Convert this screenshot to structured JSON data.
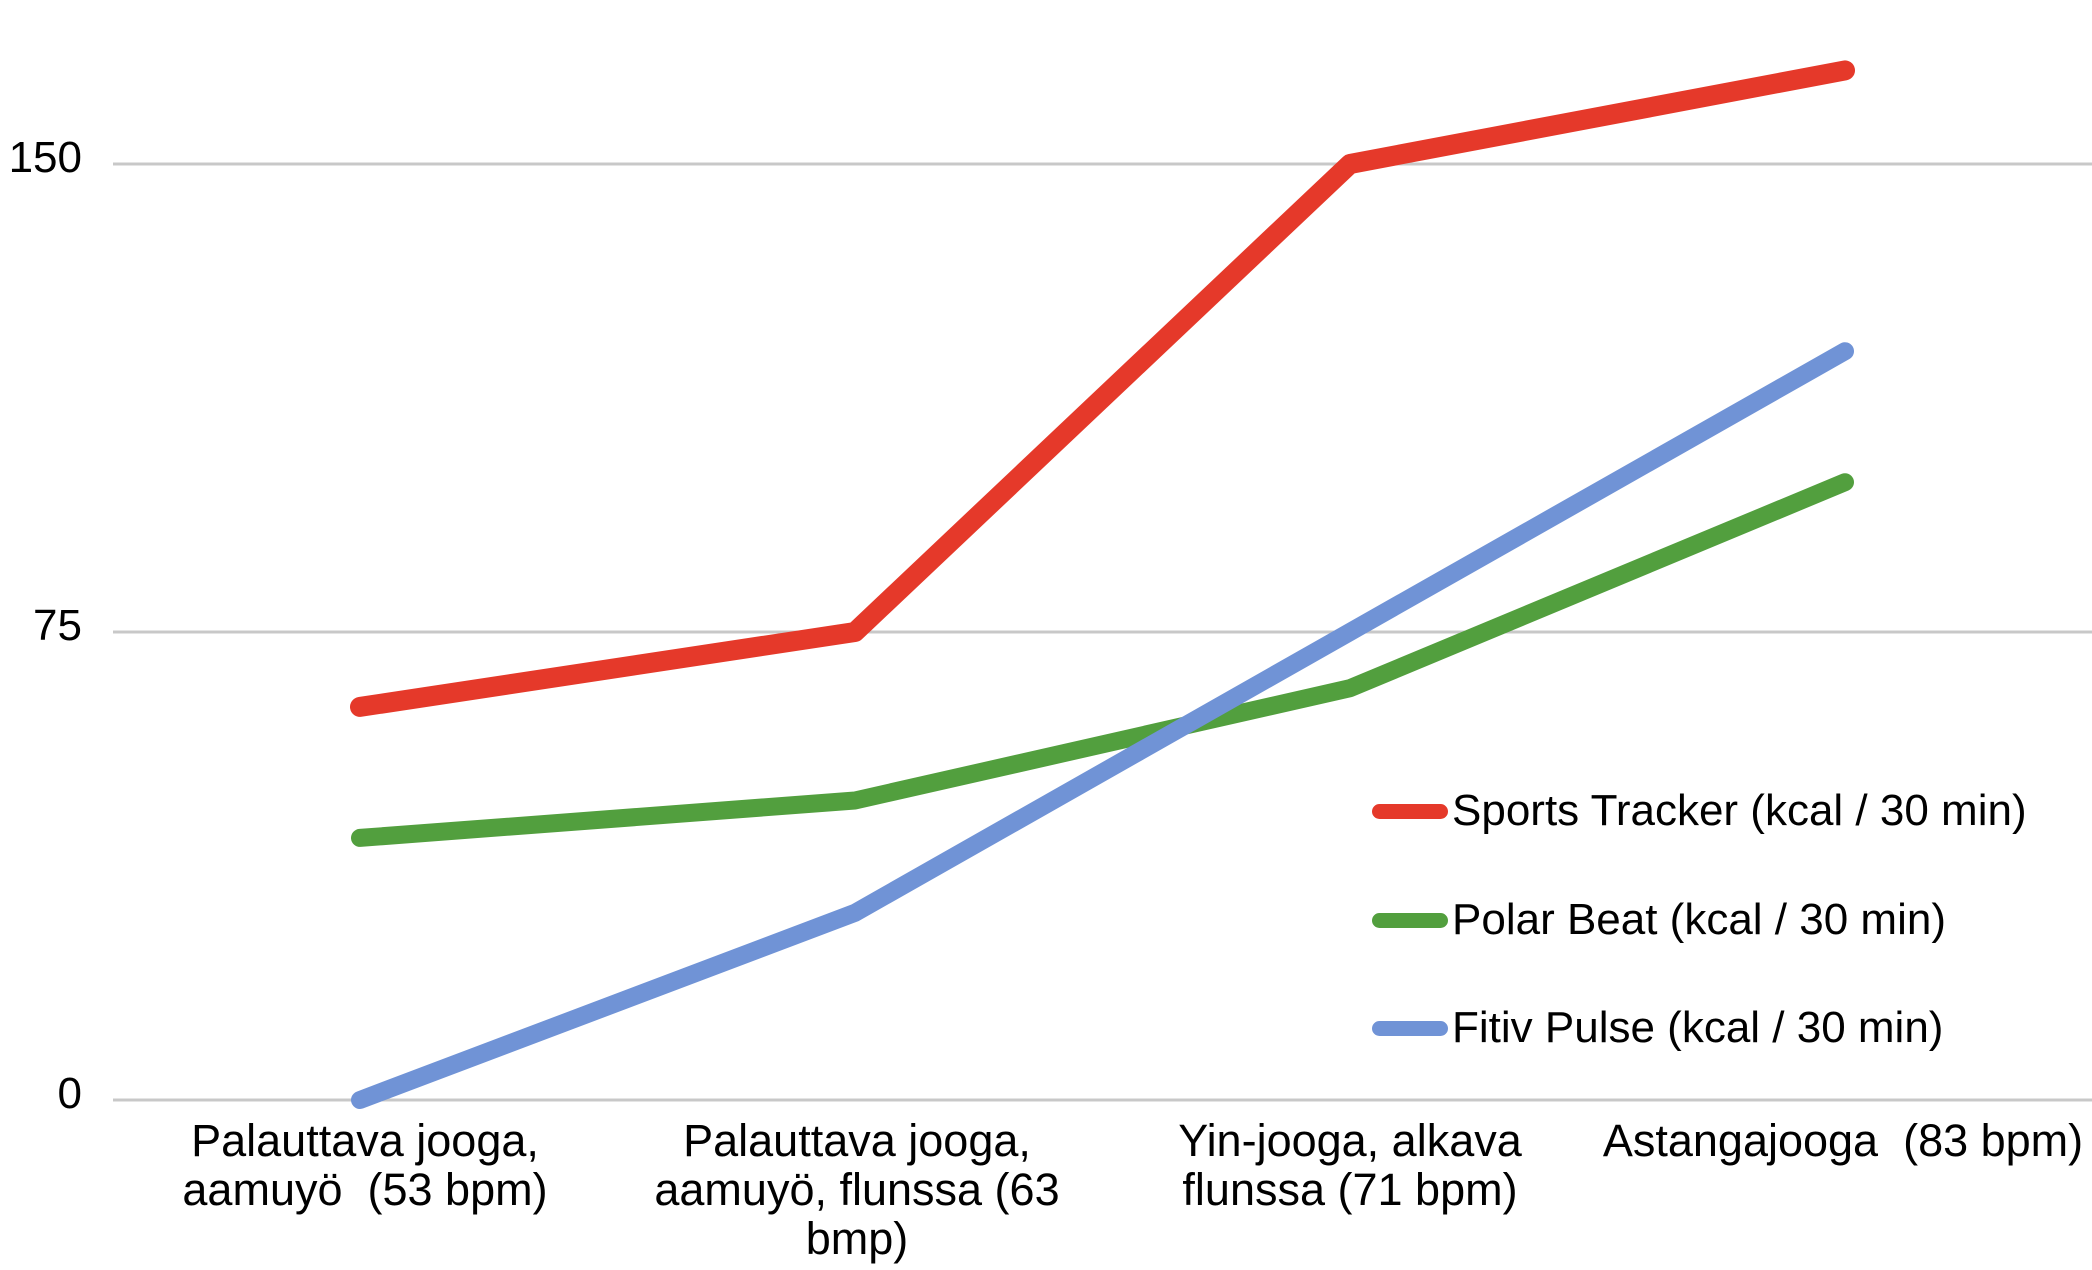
{
  "chart_data": {
    "type": "line",
    "title": "",
    "xlabel": "",
    "ylabel": "",
    "categories": [
      "Palauttava jooga, aamuyö  (53 bpm)",
      "Palauttava jooga, aamuyö, flunssa (63 bmp)",
      "Yin-jooga, alkava flunssa (71 bpm)",
      "Astangajooga  (83 bpm)"
    ],
    "series": [
      {
        "name": "Sports Tracker (kcal / 30 min)",
        "values": [
          63,
          75,
          150,
          165
        ],
        "color": "#e5392a"
      },
      {
        "name": "Polar Beat (kcal / 30 min)",
        "values": [
          42,
          48,
          66,
          99
        ],
        "color": "#529f3e"
      },
      {
        "name": "Fitiv Pulse (kcal / 30 min)",
        "values": [
          0,
          30,
          75,
          120
        ],
        "color": "#7093d6"
      }
    ],
    "yticks": [
      {
        "value": 150,
        "label": "150"
      },
      {
        "value": 75,
        "label": "75"
      },
      {
        "value": 0,
        "label": "0"
      }
    ],
    "ylim": [
      0,
      176
    ],
    "grid": "horizontal",
    "gridline_color": "#c8c8c8",
    "legend_position": "right-middle-inside"
  }
}
